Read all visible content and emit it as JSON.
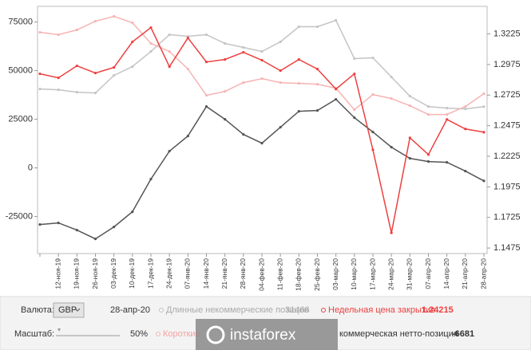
{
  "chart_data": {
    "type": "line",
    "categories": [
      null,
      "12-ноя-19",
      "19-ноя-19",
      "26-ноя-19",
      "03-дек-19",
      "10-дек-19",
      "17-дек-19",
      "24-дек-19",
      "07-янв-20",
      "14-янв-20",
      "21-янв-20",
      "28-янв-20",
      "04-фев-20",
      "11-фев-20",
      "18-фев-20",
      "25-фев-20",
      "03-мар-20",
      "10-мар-20",
      "17-мар-20",
      "24-мар-20",
      "31-мар-20",
      "07-апр-20",
      "14-апр-20",
      "21-апр-20",
      "28-апр-20"
    ],
    "series": [
      {
        "name": "Длинные некоммерческие позиции",
        "color": "#c4c4c4",
        "axis": "y",
        "values": [
          40570,
          40160,
          38930,
          38520,
          47540,
          52050,
          59830,
          68440,
          67620,
          68440,
          63930,
          61890,
          59830,
          64750,
          72540,
          72540,
          75820,
          56150,
          56560,
          46720,
          36890,
          31560,
          30740,
          30330,
          31466
        ]
      },
      {
        "name": "Короткие",
        "color": "#f6b4b4",
        "axis": "y",
        "values": [
          69670,
          68440,
          70900,
          75400,
          77870,
          74590,
          63930,
          59830,
          50820,
          37290,
          39340,
          43850,
          45900,
          43850,
          43440,
          43030,
          40980,
          29920,
          37700,
          35650,
          31970,
          27460,
          27460,
          31560,
          38147
        ]
      },
      {
        "name": "коммерческая нетто-позиция",
        "color": "#555555",
        "axis": "y",
        "values": [
          -29100,
          -28280,
          -31960,
          -36480,
          -30320,
          -22540,
          -5740,
          8610,
          16390,
          31560,
          24990,
          17210,
          12700,
          20900,
          29100,
          29510,
          35250,
          25820,
          18440,
          10660,
          4920,
          3280,
          2870,
          -1640,
          -6681
        ]
      },
      {
        "name": "Недельная цена закрытия",
        "color": "#ee4040",
        "axis": "y2",
        "values": [
          1.2899,
          1.2866,
          1.2964,
          1.2905,
          1.2951,
          1.316,
          1.3277,
          1.2957,
          1.3192,
          1.2996,
          1.3016,
          1.3075,
          1.301,
          1.2925,
          1.3016,
          1.2938,
          1.2774,
          1.2899,
          1.2278,
          1.1599,
          1.2376,
          1.2239,
          1.2526,
          1.2448,
          1.24215
        ]
      }
    ],
    "ylim": [
      -44000,
      83000
    ],
    "yticks": [
      -25000,
      0,
      25000,
      50000,
      75000
    ],
    "y2lim": [
      1.143,
      1.345
    ],
    "y2ticks": [
      1.1475,
      1.1725,
      1.1975,
      1.2225,
      1.2475,
      1.2725,
      1.2975,
      1.3225
    ]
  },
  "panel": {
    "currency_label": "Валюта:",
    "currency": "GBP",
    "scale_label": "Масштаб:",
    "scale": "50%",
    "watermark": "instaforex"
  }
}
